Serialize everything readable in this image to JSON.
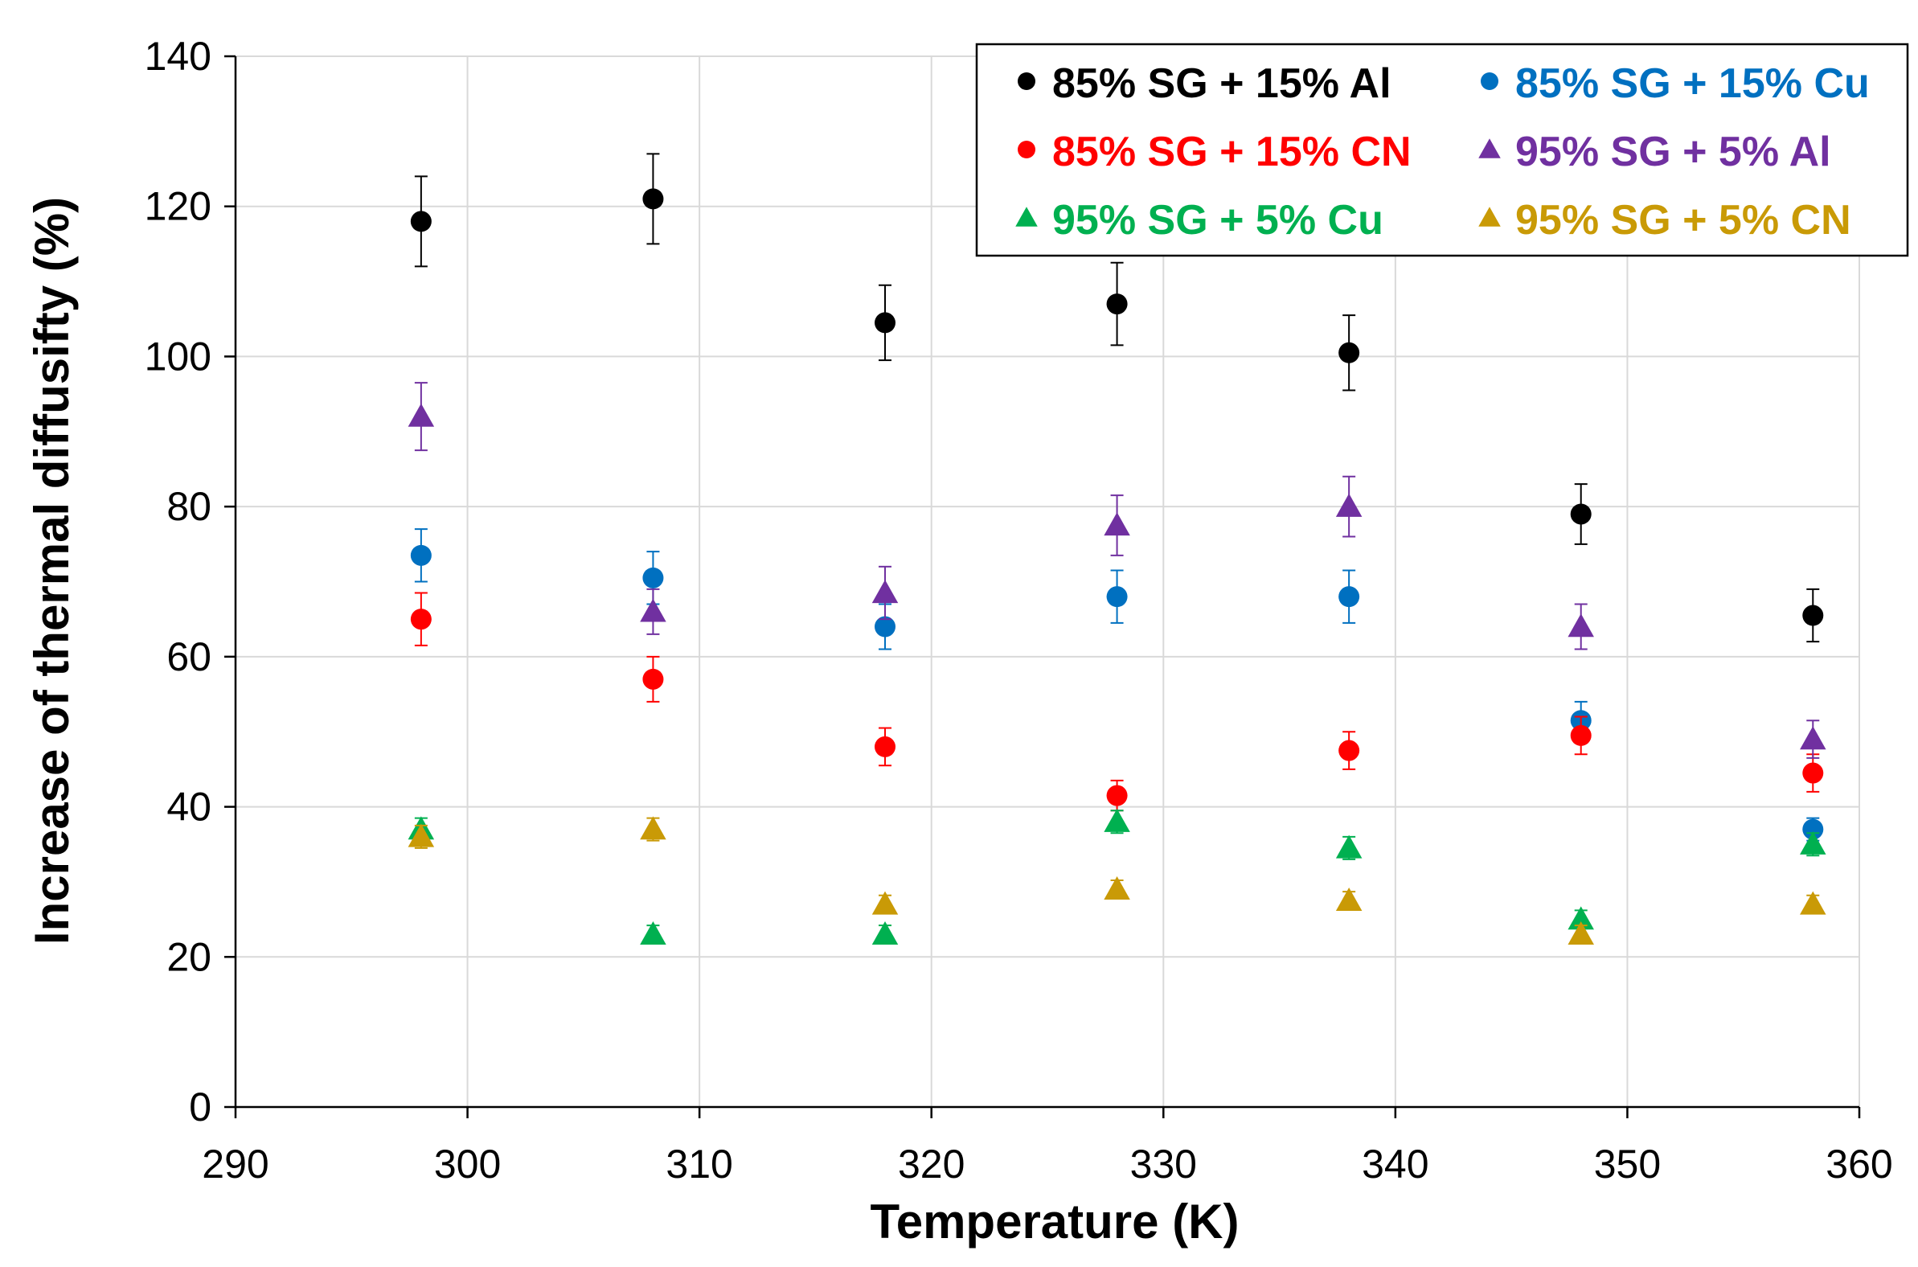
{
  "chart_data": {
    "type": "scatter",
    "title": "",
    "xlabel": "Temperature (K)",
    "ylabel": "Increase of thermal diffusifty (%)",
    "xlim": [
      290,
      360
    ],
    "ylim": [
      0,
      140
    ],
    "xticks": [
      290,
      300,
      310,
      320,
      330,
      340,
      350,
      360
    ],
    "yticks": [
      0,
      20,
      40,
      60,
      80,
      100,
      120,
      140
    ],
    "grid": true,
    "legend_position": "top-right",
    "series": [
      {
        "name": "85% SG + 15% Al",
        "color": "#000000",
        "marker": "circle",
        "x": [
          298,
          308,
          318,
          328,
          338,
          348,
          358
        ],
        "y": [
          118,
          121,
          104.5,
          107,
          100.5,
          79,
          65.5
        ],
        "err": [
          6,
          6,
          5,
          5.5,
          5,
          4,
          3.5
        ]
      },
      {
        "name": "85% SG + 15% Cu",
        "color": "#0070C0",
        "marker": "circle",
        "x": [
          298,
          308,
          318,
          328,
          338,
          348,
          358
        ],
        "y": [
          73.5,
          70.5,
          64,
          68,
          68,
          51.5,
          37
        ],
        "err": [
          3.5,
          3.5,
          3,
          3.5,
          3.5,
          2.5,
          1.5
        ]
      },
      {
        "name": "85% SG + 15% CN",
        "color": "#FF0000",
        "marker": "circle",
        "x": [
          298,
          308,
          318,
          328,
          338,
          348,
          358
        ],
        "y": [
          65,
          57,
          48,
          41.5,
          47.5,
          49.5,
          44.5
        ],
        "err": [
          3.5,
          3,
          2.5,
          2,
          2.5,
          2.5,
          2.5
        ]
      },
      {
        "name": "95% SG + 5% Al",
        "color": "#7030A0",
        "marker": "triangle",
        "x": [
          298,
          308,
          318,
          328,
          338,
          348,
          358
        ],
        "y": [
          92,
          66,
          68.5,
          77.5,
          80,
          64,
          49
        ],
        "err": [
          4.5,
          3,
          3.5,
          4,
          4,
          3,
          2.5
        ]
      },
      {
        "name": "95% SG + 5% Cu",
        "color": "#00B050",
        "marker": "triangle",
        "x": [
          298,
          308,
          318,
          328,
          338,
          348,
          358
        ],
        "y": [
          37,
          23,
          23,
          38,
          34.5,
          25,
          35
        ],
        "err": [
          1.5,
          1.2,
          1.2,
          1.5,
          1.5,
          1.2,
          1.5
        ]
      },
      {
        "name": "95% SG + 5% CN",
        "color": "#C99A06",
        "marker": "triangle",
        "x": [
          298,
          308,
          318,
          328,
          338,
          348,
          358
        ],
        "y": [
          36,
          37,
          27,
          29,
          27.5,
          23,
          27
        ],
        "err": [
          1.5,
          1.5,
          1.2,
          1.2,
          1.2,
          1.2,
          1.2
        ]
      }
    ]
  }
}
